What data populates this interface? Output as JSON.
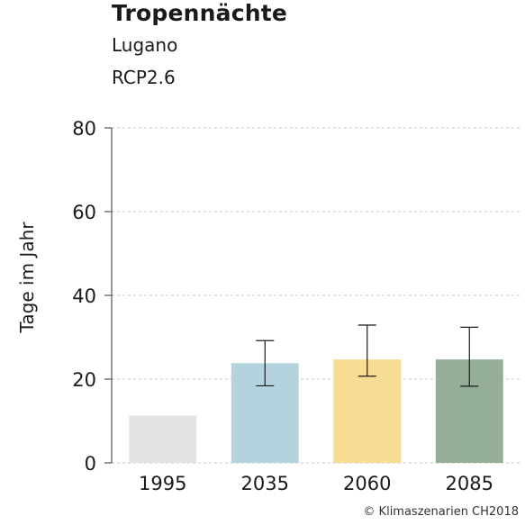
{
  "chart_data": {
    "type": "bar",
    "title": "Tropennächte",
    "subtitle": [
      "Lugano",
      "RCP2.6"
    ],
    "ylabel": "Tage im Jahr",
    "xlabel": "",
    "ylim": [
      0,
      80
    ],
    "yticks": [
      0,
      20,
      40,
      60,
      80
    ],
    "grid": true,
    "categories": [
      "1995",
      "2035",
      "2060",
      "2085"
    ],
    "values": [
      11.3,
      23.8,
      24.7,
      24.7
    ],
    "error_low": [
      null,
      18.4,
      20.7,
      18.3
    ],
    "error_high": [
      null,
      29.2,
      32.9,
      32.4
    ],
    "colors": [
      "#e3e3e3",
      "#b3d3de",
      "#f9dc94",
      "#94ae97"
    ]
  },
  "footer": {
    "copyright": "© Klimaszenarien CH2018"
  }
}
